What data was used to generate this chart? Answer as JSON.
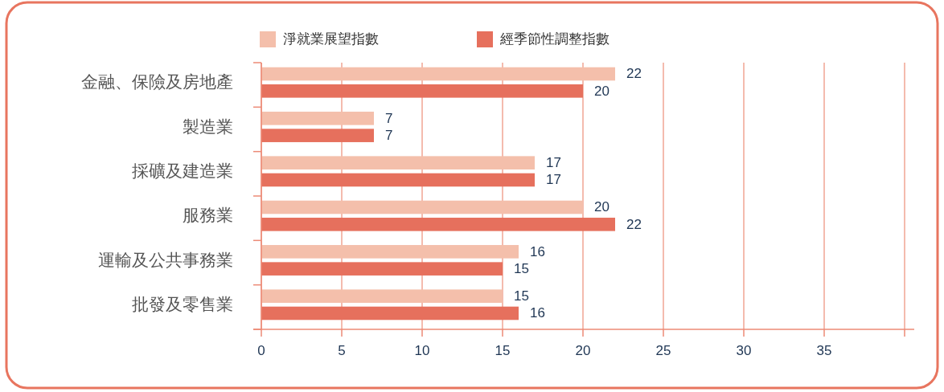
{
  "chart_data": {
    "type": "bar",
    "orientation": "horizontal",
    "categories": [
      "金融、保險及房地產",
      "製造業",
      "採礦及建造業",
      "服務業",
      "運輸及公共事務業",
      "批發及零售業"
    ],
    "series": [
      {
        "name": "淨就業展望指數",
        "color": "#f4bfab",
        "values": [
          22,
          7,
          17,
          20,
          16,
          15
        ]
      },
      {
        "name": "經季節性調整指數",
        "color": "#e6705d",
        "values": [
          20,
          7,
          17,
          22,
          15,
          16
        ]
      }
    ],
    "xlim": [
      0,
      40.6
    ],
    "xticks": [
      0,
      5,
      10,
      15,
      20,
      25,
      30,
      35,
      {
        "value": 40,
        "label": null
      }
    ],
    "grid": "x",
    "legend": "top",
    "data_labels": true
  }
}
